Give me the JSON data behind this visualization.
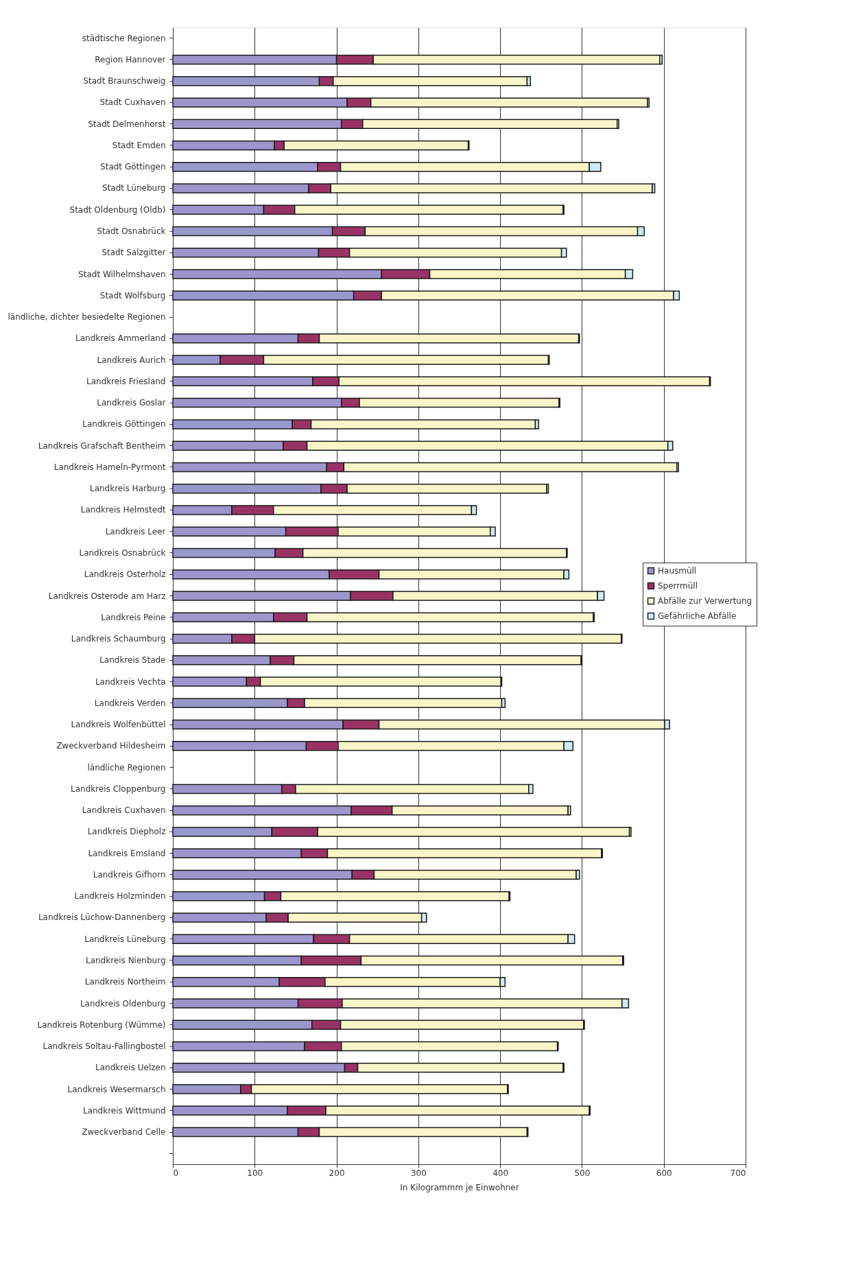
{
  "chart_data": {
    "type": "bar",
    "orientation": "horizontal",
    "stacked": true,
    "xlabel": "In Kilogrammm je Einwohner",
    "categories": [
      "städtische Regionen",
      "Region Hannover",
      "Stadt Braunschweig",
      "Stadt Cuxhaven",
      "Stadt Delmenhorst",
      "Stadt Emden",
      "Stadt Göttingen",
      "Stadt Lüneburg",
      "Stadt Oldenburg (Oldb)",
      "Stadt Osnabrück",
      "Stadt Salzgitter",
      "Stadt Wilhelmshaven",
      "Stadt Wolfsburg",
      "ländliche, dichter besiedelte Regionen",
      "Landkreis Ammerland",
      "Landkreis Aurich",
      "Landkreis Friesland",
      "Landkreis Goslar",
      "Landkreis Göttingen",
      "Landkreis Grafschaft Bentheim",
      "Landkreis Hameln-Pyrmont",
      "Landkreis Harburg",
      "Landkreis Helmstedt",
      "Landkreis Leer",
      "Landkreis Osnabrück",
      "Landkreis Osterholz",
      "Landkreis Osterode am Harz",
      "Landkreis Peine",
      "Landkreis Schaumburg",
      "Landkreis Stade",
      "Landkreis Vechta",
      "Landkreis Verden",
      "Landkreis Wolfenbüttel",
      "Zweckverband Hildesheim",
      "ländliche Regionen",
      "Landkreis Cloppenburg",
      "Landkreis Cuxhaven",
      "Landkreis Diepholz",
      "Landkreis Emsland",
      "Landkreis Gifhorn",
      "Landkreis Holzminden",
      "Landkreis Lüchow-Dannenberg",
      "Landkreis Lüneburg",
      "Landkreis Nienburg",
      "Landkreis Northeim",
      "Landkreis Oldenburg",
      "Landkreis Rotenburg (Wümme)",
      "Landkreis Soltau-Fallingbostel",
      "Landkreis Uelzen",
      "Landkreis Wesermarsch",
      "Landkreis Wittmund",
      "Zweckverband Celle",
      null
    ],
    "series": [
      {
        "name": "Hausmüll",
        "color": "#9b97cc",
        "values": [
          null,
          200,
          179,
          213,
          206,
          124,
          177,
          166,
          111,
          195,
          178,
          255,
          221,
          null,
          153,
          58,
          171,
          206,
          146,
          135,
          188,
          181,
          72,
          138,
          125,
          191,
          217,
          123,
          72,
          119,
          90,
          140,
          208,
          163,
          null,
          133,
          218,
          121,
          157,
          219,
          112,
          114,
          172,
          157,
          130,
          153,
          170,
          161,
          210,
          83,
          140,
          153,
          null
        ]
      },
      {
        "name": "Sperrmüll",
        "color": "#993366",
        "values": [
          null,
          45,
          17,
          29,
          26,
          12,
          28,
          27,
          38,
          40,
          38,
          59,
          34,
          null,
          26,
          53,
          32,
          22,
          23,
          29,
          21,
          32,
          51,
          64,
          34,
          61,
          52,
          41,
          28,
          29,
          17,
          21,
          44,
          39,
          null,
          17,
          50,
          56,
          32,
          27,
          20,
          27,
          44,
          73,
          56,
          54,
          35,
          45,
          16,
          13,
          47,
          26,
          null
        ]
      },
      {
        "name": "Abfälle zur Verwertung",
        "color": "#f8f5c8",
        "values": [
          null,
          350,
          237,
          338,
          311,
          225,
          304,
          393,
          328,
          333,
          259,
          239,
          357,
          null,
          317,
          348,
          453,
          244,
          274,
          441,
          407,
          244,
          242,
          186,
          322,
          226,
          250,
          350,
          448,
          351,
          294,
          241,
          349,
          276,
          null,
          285,
          215,
          381,
          335,
          247,
          279,
          163,
          267,
          320,
          214,
          342,
          297,
          264,
          251,
          313,
          322,
          254,
          null
        ]
      },
      {
        "name": "Gefährliche Abfälle",
        "color": "#cdeaf5",
        "values": [
          null,
          3,
          4,
          2,
          2,
          1,
          14,
          3,
          1,
          8,
          6,
          9,
          7,
          null,
          1,
          1,
          1,
          1,
          4,
          6,
          2,
          2,
          6,
          6,
          1,
          6,
          8,
          1,
          1,
          1,
          1,
          4,
          6,
          11,
          null,
          5,
          3,
          2,
          1,
          4,
          1,
          6,
          8,
          1,
          6,
          8,
          1,
          1,
          1,
          1,
          1,
          1,
          null
        ]
      }
    ],
    "xlim": [
      0,
      700
    ],
    "xticks": [
      0,
      100,
      200,
      300,
      400,
      500,
      600,
      700
    ],
    "grid": "x",
    "legend": "right"
  }
}
